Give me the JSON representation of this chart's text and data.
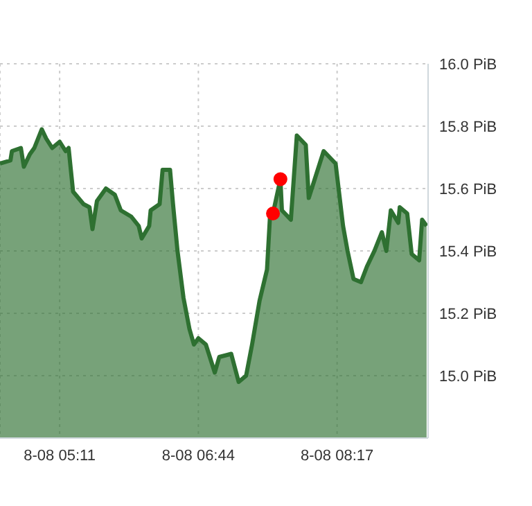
{
  "chart_data": {
    "type": "area",
    "xlim": [
      "--08-08T04:31",
      "--08-08T09:18"
    ],
    "ylim": [
      14.8,
      16.0
    ],
    "xticks": [
      {
        "value": "--08-08T05:11",
        "label": "8-08 05:11"
      },
      {
        "value": "--08-08T06:44",
        "label": "8-08 06:44"
      },
      {
        "value": "--08-08T08:17",
        "label": "8-08 08:17"
      }
    ],
    "yticks": [
      {
        "value": 15.0,
        "label": "15.0 PiB"
      },
      {
        "value": 15.2,
        "label": "15.2 PiB"
      },
      {
        "value": 15.4,
        "label": "15.4 PiB"
      },
      {
        "value": 15.6,
        "label": "15.6 PiB"
      },
      {
        "value": 15.8,
        "label": "15.8 PiB"
      },
      {
        "value": 16.0,
        "label": "16.0 PiB"
      }
    ],
    "grid": true,
    "series": [
      {
        "color": "#2e7031",
        "x": [
          "--08-08T04:31",
          "--08-08T04:38",
          "--08-08T04:39",
          "--08-08T04:45",
          "--08-08T04:47",
          "--08-08T04:51",
          "--08-08T04:54",
          "--08-08T04:59",
          "--08-08T05:02",
          "--08-08T05:06",
          "--08-08T05:11",
          "--08-08T05:15",
          "--08-08T05:17",
          "--08-08T05:20",
          "--08-08T05:27",
          "--08-08T05:31",
          "--08-08T05:33",
          "--08-08T05:36",
          "--08-08T05:42",
          "--08-08T05:48",
          "--08-08T05:52",
          "--08-08T05:59",
          "--08-08T06:04",
          "--08-08T06:06",
          "--08-08T06:11",
          "--08-08T06:12",
          "--08-08T06:18",
          "--08-08T06:20",
          "--08-08T06:25",
          "--08-08T06:27",
          "--08-08T06:30",
          "--08-08T06:34",
          "--08-08T06:38",
          "--08-08T06:41",
          "--08-08T06:44",
          "--08-08T06:49",
          "--08-08T06:53",
          "--08-08T06:55",
          "--08-08T06:58",
          "--08-08T07:06",
          "--08-08T07:11",
          "--08-08T07:16",
          "--08-08T07:20",
          "--08-08T07:25",
          "--08-08T07:30",
          "--08-08T07:32",
          "--08-08T07:34",
          "--08-08T07:39",
          "--08-08T07:40",
          "--08-08T07:46",
          "--08-08T07:50",
          "--08-08T07:56",
          "--08-08T07:58",
          "--08-08T08:02",
          "--08-08T08:08",
          "--08-08T08:16",
          "--08-08T08:21",
          "--08-08T08:24",
          "--08-08T08:28",
          "--08-08T08:33",
          "--08-08T08:37",
          "--08-08T08:42",
          "--08-08T08:47",
          "--08-08T08:50",
          "--08-08T08:53",
          "--08-08T08:58",
          "--08-08T08:59",
          "--08-08T09:04",
          "--08-08T09:07",
          "--08-08T09:12",
          "--08-08T09:14",
          "--08-08T09:17"
        ],
        "values": [
          15.68,
          15.69,
          15.72,
          15.73,
          15.67,
          15.71,
          15.73,
          15.79,
          15.76,
          15.73,
          15.75,
          15.72,
          15.73,
          15.59,
          15.55,
          15.54,
          15.47,
          15.56,
          15.6,
          15.58,
          15.53,
          15.51,
          15.48,
          15.44,
          15.48,
          15.53,
          15.55,
          15.66,
          15.66,
          15.55,
          15.4,
          15.25,
          15.15,
          15.1,
          15.12,
          15.1,
          15.04,
          15.01,
          15.06,
          15.07,
          14.98,
          15.0,
          15.1,
          15.24,
          15.34,
          15.51,
          15.52,
          15.63,
          15.53,
          15.5,
          15.77,
          15.74,
          15.57,
          15.63,
          15.72,
          15.68,
          15.48,
          15.4,
          15.31,
          15.3,
          15.35,
          15.4,
          15.46,
          15.4,
          15.53,
          15.49,
          15.54,
          15.52,
          15.39,
          15.37,
          15.5,
          15.48
        ]
      },
      {
        "type": "scatter",
        "color": "#ff0000",
        "x": [
          "--08-08T07:34",
          "--08-08T07:39"
        ],
        "values": [
          15.52,
          15.63
        ]
      }
    ]
  }
}
